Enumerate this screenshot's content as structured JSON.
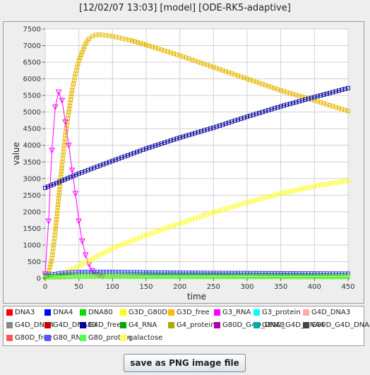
{
  "window": {
    "title": "[12/02/07 13:03] [model] [ODE-RK5-adaptive]"
  },
  "actions": {
    "save_label": "save as PNG image file"
  },
  "chart_data": {
    "type": "line",
    "title": "[12/02/07 13:03] [model] [ODE-RK5-adaptive]",
    "xlabel": "time",
    "ylabel": "value",
    "xlim": [
      0,
      450
    ],
    "ylim": [
      0,
      7500
    ],
    "xticks": [
      0,
      50,
      100,
      150,
      200,
      250,
      300,
      350,
      400,
      450
    ],
    "yticks": [
      0,
      500,
      1000,
      1500,
      2000,
      2500,
      3000,
      3500,
      4000,
      4500,
      5000,
      5500,
      6000,
      6500,
      7000,
      7500
    ],
    "grid": true,
    "legend_placement": "bottom",
    "series": [
      {
        "name": "G3D_free",
        "color": "#e6b800",
        "marker": "square",
        "points": [
          [
            0,
            30
          ],
          [
            5,
            150
          ],
          [
            10,
            600
          ],
          [
            15,
            1400
          ],
          [
            20,
            2400
          ],
          [
            25,
            3400
          ],
          [
            30,
            4300
          ],
          [
            35,
            5000
          ],
          [
            40,
            5650
          ],
          [
            45,
            6150
          ],
          [
            50,
            6550
          ],
          [
            55,
            6800
          ],
          [
            60,
            7050
          ],
          [
            65,
            7200
          ],
          [
            70,
            7280
          ],
          [
            75,
            7320
          ],
          [
            80,
            7330
          ],
          [
            90,
            7310
          ],
          [
            100,
            7280
          ],
          [
            125,
            7170
          ],
          [
            150,
            7020
          ],
          [
            200,
            6700
          ],
          [
            250,
            6350
          ],
          [
            300,
            6000
          ],
          [
            350,
            5650
          ],
          [
            400,
            5350
          ],
          [
            450,
            5030
          ]
        ]
      },
      {
        "name": "G4D_free",
        "color": "#1010a0",
        "marker": "square",
        "points": [
          [
            0,
            2720
          ],
          [
            50,
            3150
          ],
          [
            100,
            3530
          ],
          [
            150,
            3900
          ],
          [
            200,
            4230
          ],
          [
            250,
            4530
          ],
          [
            300,
            4860
          ],
          [
            350,
            5170
          ],
          [
            400,
            5450
          ],
          [
            450,
            5720
          ]
        ]
      },
      {
        "name": "G3_RNA",
        "color": "#ff00ff",
        "marker": "triangle",
        "points": [
          [
            0,
            130
          ],
          [
            5,
            1720
          ],
          [
            10,
            3850
          ],
          [
            15,
            5150
          ],
          [
            20,
            5600
          ],
          [
            25,
            5350
          ],
          [
            30,
            4700
          ],
          [
            35,
            4000
          ],
          [
            40,
            3250
          ],
          [
            45,
            2550
          ],
          [
            50,
            1720
          ],
          [
            55,
            1120
          ],
          [
            60,
            700
          ],
          [
            65,
            420
          ],
          [
            70,
            230
          ],
          [
            75,
            120
          ],
          [
            80,
            80
          ],
          [
            85,
            60
          ]
        ]
      },
      {
        "name": "G4_protein",
        "color": "#ffff33",
        "marker": "square",
        "points": [
          [
            0,
            0
          ],
          [
            25,
            120
          ],
          [
            50,
            370
          ],
          [
            100,
            900
          ],
          [
            150,
            1300
          ],
          [
            200,
            1650
          ],
          [
            250,
            1980
          ],
          [
            300,
            2280
          ],
          [
            350,
            2550
          ],
          [
            400,
            2770
          ],
          [
            450,
            2940
          ]
        ]
      },
      {
        "name": "G80_RNA",
        "color": "#4040ff",
        "marker": "square",
        "points": [
          [
            0,
            80
          ],
          [
            25,
            160
          ],
          [
            50,
            190
          ],
          [
            100,
            190
          ],
          [
            150,
            175
          ],
          [
            200,
            165
          ],
          [
            250,
            160
          ],
          [
            300,
            155
          ],
          [
            350,
            150
          ],
          [
            400,
            145
          ],
          [
            450,
            140
          ]
        ]
      },
      {
        "name": "G4_RNA",
        "color": "#22aa22",
        "marker": "square",
        "points": [
          [
            0,
            60
          ],
          [
            50,
            90
          ],
          [
            100,
            85
          ],
          [
            200,
            80
          ],
          [
            300,
            78
          ],
          [
            450,
            75
          ]
        ]
      },
      {
        "name": "G80_protein",
        "color": "#66ff33",
        "marker": "square",
        "points": [
          [
            0,
            20
          ],
          [
            50,
            45
          ],
          [
            100,
            45
          ],
          [
            200,
            40
          ],
          [
            300,
            38
          ],
          [
            450,
            35
          ]
        ]
      }
    ],
    "legend": [
      {
        "label": "DNA3",
        "color": "#ff0000"
      },
      {
        "label": "DNA4",
        "color": "#0000ff"
      },
      {
        "label": "DNA80",
        "color": "#00dd00"
      },
      {
        "label": "G3D_G80D",
        "color": "#ffff00"
      },
      {
        "label": "G3D_free",
        "color": "#ffbb00"
      },
      {
        "label": "G3_RNA",
        "color": "#ff00ff"
      },
      {
        "label": "G3_protein",
        "color": "#00ffff"
      },
      {
        "label": "G4D_DNA3",
        "color": "#ffaaaa"
      },
      {
        "label": "G4D_DNA4",
        "color": "#888888"
      },
      {
        "label": "G4D_DNA80",
        "color": "#cc0000"
      },
      {
        "label": "G4D_free",
        "color": "#000099"
      },
      {
        "label": "G4_RNA",
        "color": "#00aa00"
      },
      {
        "label": "G4_protein",
        "color": "#aaaa00"
      },
      {
        "label": "G80D_G4D_DNA3",
        "color": "#aa00aa"
      },
      {
        "label": "G80D_G4D_DNA4",
        "color": "#00aaaa"
      },
      {
        "label": "G80D_G4D_DNA80",
        "color": "#444444"
      },
      {
        "label": "G80D_free",
        "color": "#ff5555"
      },
      {
        "label": "G80_RNA",
        "color": "#5555ff"
      },
      {
        "label": "G80_protein",
        "color": "#55ff55"
      },
      {
        "label": "galactose",
        "color": "#ffff55"
      }
    ]
  }
}
